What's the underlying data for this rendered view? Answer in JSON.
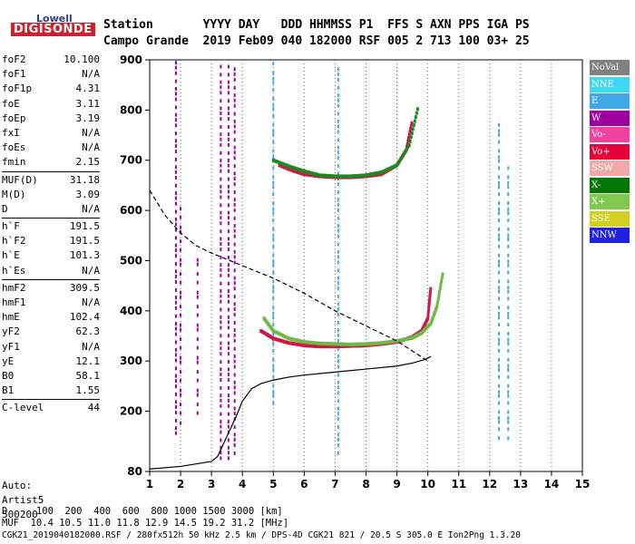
{
  "logo": {
    "top": "Lowell",
    "main": "DIGISONDE"
  },
  "header": {
    "row1": "Station       YYYY DAY   DDD HHMMSS P1  FFS S AXN PPS IGA PS",
    "row2": "Campo Grande  2019 Feb09 040 182000 RSF 005 2 713 100 03+ 25"
  },
  "params": [
    {
      "name": "foF2",
      "value": "10.100"
    },
    {
      "name": "foF1",
      "value": "N/A"
    },
    {
      "name": "foF1p",
      "value": "4.31"
    },
    {
      "name": "foE",
      "value": "3.11"
    },
    {
      "name": "foEp",
      "value": "3.19"
    },
    {
      "name": "fxI",
      "value": "N/A"
    },
    {
      "name": "foEs",
      "value": "N/A"
    },
    {
      "name": "fmin",
      "value": "2.15"
    },
    {
      "name": "MUF(D)",
      "value": "31.18"
    },
    {
      "name": "M(D)",
      "value": "3.09"
    },
    {
      "name": "D",
      "value": "N/A"
    },
    {
      "name": "h`F",
      "value": "191.5"
    },
    {
      "name": "h`F2",
      "value": "191.5"
    },
    {
      "name": "h`E",
      "value": "101.3"
    },
    {
      "name": "h`Es",
      "value": "N/A"
    },
    {
      "name": "hmF2",
      "value": "309.5"
    },
    {
      "name": "hmF1",
      "value": "N/A"
    },
    {
      "name": "hmE",
      "value": "102.4"
    },
    {
      "name": "yF2",
      "value": "62.3"
    },
    {
      "name": "yF1",
      "value": "N/A"
    },
    {
      "name": "yE",
      "value": "12.1"
    },
    {
      "name": "B0",
      "value": "58.1"
    },
    {
      "name": "B1",
      "value": "1.55"
    },
    {
      "name": "C-level",
      "value": "44"
    }
  ],
  "auto": {
    "line1": "Auto:",
    "line2": "Artist5",
    "line3": "500200"
  },
  "legend": [
    {
      "label": "NoVal",
      "color": "#808080"
    },
    {
      "label": "NNE",
      "color": "#40d8f0"
    },
    {
      "label": "E",
      "color": "#40a8e8"
    },
    {
      "label": "W",
      "color": "#a000a0"
    },
    {
      "label": "Vo-",
      "color": "#f040a0"
    },
    {
      "label": "Vo+",
      "color": "#e80038"
    },
    {
      "label": "SSW",
      "color": "#f0a8a8"
    },
    {
      "label": "X-",
      "color": "#007800"
    },
    {
      "label": "X+",
      "color": "#80c850"
    },
    {
      "label": "SSE",
      "color": "#d0d020"
    },
    {
      "label": "NNW",
      "color": "#2020e0"
    }
  ],
  "footer": {
    "d_row": "D     100  200  400  600  800 1000 1500 3000 [km]",
    "muf_row": "MUF  10.4 10.5 11.0 11.8 12.9 14.5 19.2 31.2 [MHz]",
    "file_row": "CGK21_2019040182000.RSF / 280fx512h 50 kHz 2.5 km / DPS-4D CGK21 821 / 20.5 S 305.0 E Ion2Png 1.3.20"
  },
  "chart_data": {
    "type": "scatter",
    "xlim": [
      1,
      15
    ],
    "ylim": [
      80,
      900
    ],
    "xticks": [
      "1",
      "2",
      "3",
      "4",
      "5",
      "6",
      "7",
      "8",
      "9",
      "10",
      "11",
      "12",
      "13",
      "14",
      "15"
    ],
    "yticks": [
      "80",
      "200",
      "300",
      "400",
      "500",
      "600",
      "700",
      "800",
      "900"
    ],
    "grid": "vertical dashed",
    "series": [
      {
        "name": "O trace (F2)",
        "color": "#d01848",
        "x": [
          4.6,
          5.0,
          5.5,
          6.0,
          6.5,
          7.0,
          7.5,
          8.0,
          8.5,
          9.0,
          9.5,
          9.8,
          10.0,
          10.1
        ],
        "y": [
          360,
          345,
          336,
          331,
          329,
          329,
          330,
          331,
          334,
          338,
          348,
          360,
          385,
          450
        ]
      },
      {
        "name": "X trace (F2)",
        "color": "#70b848",
        "x": [
          4.7,
          5.0,
          5.5,
          6.0,
          6.5,
          7.0,
          7.5,
          8.0,
          8.5,
          9.0,
          9.5,
          9.8,
          10.1,
          10.3,
          10.5
        ],
        "y": [
          385,
          360,
          345,
          338,
          335,
          334,
          333,
          334,
          336,
          340,
          346,
          356,
          375,
          410,
          480
        ]
      },
      {
        "name": "2nd hop O",
        "color": "#d01848",
        "x": [
          5.2,
          5.6,
          6.0,
          6.5,
          7.0,
          7.5,
          8.0,
          8.5,
          9.0,
          9.3,
          9.5
        ],
        "y": [
          690,
          680,
          672,
          668,
          666,
          666,
          668,
          672,
          690,
          720,
          780
        ]
      },
      {
        "name": "2nd hop X",
        "color": "#208820",
        "x": [
          5.0,
          5.5,
          6.0,
          6.5,
          7.0,
          7.5,
          8.0,
          8.5,
          9.0,
          9.4,
          9.7
        ],
        "y": [
          700,
          688,
          678,
          670,
          668,
          668,
          670,
          676,
          690,
          730,
          810
        ]
      },
      {
        "name": "true height profile",
        "color": "#000000",
        "x": [
          1.0,
          2.0,
          2.5,
          3.0,
          3.2,
          3.5,
          3.8,
          4.0,
          4.3,
          4.6,
          5.0,
          5.5,
          6.0,
          7.0,
          8.0,
          9.0,
          9.5,
          9.9,
          10.1
        ],
        "y": [
          85,
          90,
          95,
          100,
          110,
          150,
          190,
          220,
          245,
          255,
          262,
          268,
          272,
          278,
          284,
          290,
          296,
          303,
          309
        ]
      },
      {
        "name": "MUF curve",
        "color": "#000000",
        "x": [
          1.0,
          1.5,
          2.0,
          2.5,
          3.0,
          4.0,
          5.0,
          6.0,
          7.0,
          8.0,
          9.0,
          9.5,
          10.0
        ],
        "y": [
          640,
          590,
          555,
          530,
          515,
          490,
          465,
          435,
          400,
          370,
          340,
          320,
          300
        ]
      }
    ]
  }
}
